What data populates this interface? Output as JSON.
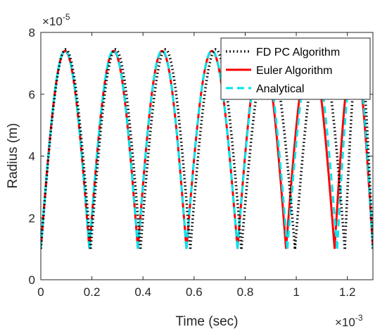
{
  "chart_data": {
    "type": "line",
    "title": "",
    "xlabel": "Time (sec)",
    "ylabel": "Radius (m)",
    "x_multiplier_label": "×10",
    "x_exponent": "-3",
    "y_multiplier_label": "×10",
    "y_exponent": "-5",
    "xlim": [
      0,
      1.3
    ],
    "ylim": [
      0,
      8
    ],
    "xticks": [
      0,
      0.2,
      0.4,
      0.6,
      0.8,
      1,
      1.2
    ],
    "xtick_labels": [
      "0",
      "0.2",
      "0.4",
      "0.6",
      "0.8",
      "1",
      "1.2"
    ],
    "yticks": [
      0,
      2,
      4,
      6,
      8
    ],
    "ytick_labels": [
      "0",
      "2",
      "4",
      "6",
      "8"
    ],
    "grid": false,
    "legend_position": "top-right",
    "curve_model": "each cycle: R = Rmin + (Rmax - Rmin) * sin(pi * (t - start) / (end - start))",
    "series": [
      {
        "name": "FD PC Algorithm",
        "color": "#000000",
        "style": "dotted",
        "r_min": 1.0,
        "r_max": 7.45,
        "cycles": [
          [
            0,
            0.195
          ],
          [
            0.195,
            0.39
          ],
          [
            0.39,
            0.585
          ],
          [
            0.585,
            0.785
          ],
          [
            0.785,
            0.995
          ],
          [
            0.995,
            1.19
          ],
          [
            1.19,
            1.3
          ]
        ]
      },
      {
        "name": "Euler Algorithm",
        "color": "#ff0000",
        "style": "solid",
        "r_min": 1.0,
        "r_max": 7.4,
        "cycles": [
          [
            0,
            0.19
          ],
          [
            0.19,
            0.38
          ],
          [
            0.38,
            0.57
          ],
          [
            0.57,
            0.77
          ],
          [
            0.77,
            0.96
          ],
          [
            0.96,
            1.15
          ],
          [
            1.15,
            1.3
          ]
        ]
      },
      {
        "name": "Analytical",
        "color": "#00e5ee",
        "style": "dashed",
        "r_min": 1.0,
        "r_max": 7.42,
        "cycles": [
          [
            0,
            0.19
          ],
          [
            0.19,
            0.38
          ],
          [
            0.38,
            0.57
          ],
          [
            0.57,
            0.77
          ],
          [
            0.77,
            0.965
          ],
          [
            0.965,
            1.16
          ],
          [
            1.16,
            1.3
          ]
        ]
      }
    ]
  }
}
